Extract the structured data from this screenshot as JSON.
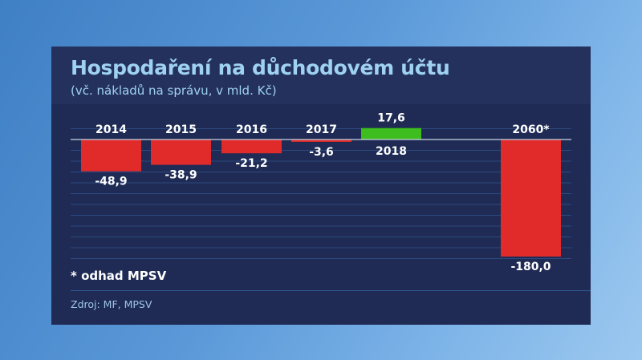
{
  "chart_data": {
    "type": "bar",
    "title": "Hospodaření na důchodovém účtu",
    "subtitle": "(vč. nákladů na správu, v mld. Kč)",
    "categories": [
      "2014",
      "2015",
      "2016",
      "2017",
      "2018",
      "2060*"
    ],
    "values": [
      -48.9,
      -38.9,
      -21.2,
      -3.6,
      17.6,
      -180.0
    ],
    "value_labels": [
      "-48,9",
      "-38,9",
      "-21,2",
      "-3,6",
      "17,6",
      "-180,0"
    ],
    "ylim": [
      -180,
      17.6
    ],
    "grid": true,
    "colors": {
      "negative": "#e12a2a",
      "positive": "#3dbd1e",
      "zero_line": "#c9d3e2",
      "grid": "#2c4a80"
    },
    "note": "* odhad MPSV",
    "source": "Zdroj: MF, MPSV"
  }
}
